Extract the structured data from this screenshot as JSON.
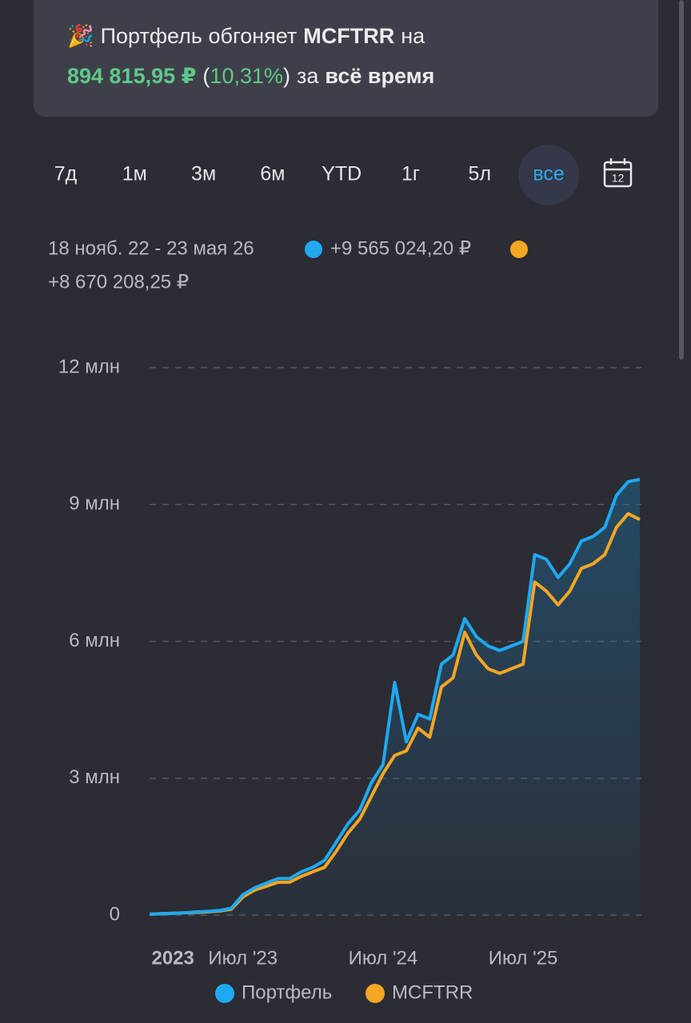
{
  "header": {
    "emoji": "🎉",
    "line1": [
      "Портфель обгоняет",
      "MCFTRR",
      "на"
    ],
    "line2": [
      "894 815,95 ₽",
      "(",
      "10,31%",
      ")",
      "за",
      "всё время"
    ]
  },
  "period_selector": {
    "options": [
      "7д",
      "1м",
      "3м",
      "6м",
      "YTD",
      "1г",
      "5л",
      "все"
    ],
    "active": 7,
    "calendar_label": "12"
  },
  "range_label": "18 нояб. 22 - 23 мая 26",
  "chart_data": {
    "type": "line",
    "x": [
      "2022-11",
      "2022-12",
      "2023-01",
      "2023-02",
      "2023-03",
      "2023-04",
      "2023-05",
      "2023-06",
      "2023-07",
      "2023-08",
      "2023-09",
      "2023-10",
      "2023-11",
      "2023-12",
      "2024-01",
      "2024-02",
      "2024-03",
      "2024-04",
      "2024-05",
      "2024-06",
      "2024-07",
      "2024-08",
      "2024-09",
      "2024-10",
      "2024-11",
      "2024-12",
      "2025-01",
      "2025-02",
      "2025-03",
      "2025-04",
      "2025-05",
      "2025-06",
      "2025-07",
      "2025-08",
      "2025-09",
      "2025-10",
      "2025-11",
      "2025-12",
      "2026-01",
      "2026-02",
      "2026-03",
      "2026-04",
      "2026-05"
    ],
    "series": [
      {
        "name": "Портфель",
        "color": "#1ea9f0",
        "change": "+9 565 024,20 ₽",
        "values": [
          0.02,
          0.03,
          0.04,
          0.05,
          0.07,
          0.08,
          0.1,
          0.15,
          0.45,
          0.6,
          0.7,
          0.8,
          0.8,
          0.95,
          1.05,
          1.2,
          1.6,
          2.0,
          2.3,
          2.9,
          3.3,
          5.1,
          3.8,
          4.4,
          4.3,
          5.5,
          5.7,
          6.5,
          6.1,
          5.9,
          5.8,
          5.9,
          6.0,
          7.9,
          7.8,
          7.4,
          7.7,
          8.2,
          8.3,
          8.5,
          9.2,
          9.5,
          9.55
        ]
      },
      {
        "name": "MCFTRR",
        "color": "#f5a623",
        "change": "+8 670 208,25 ₽",
        "values": [
          0.02,
          0.03,
          0.04,
          0.05,
          0.06,
          0.07,
          0.09,
          0.13,
          0.4,
          0.55,
          0.63,
          0.72,
          0.72,
          0.85,
          0.95,
          1.05,
          1.4,
          1.8,
          2.1,
          2.6,
          3.1,
          3.5,
          3.6,
          4.1,
          3.9,
          5.0,
          5.2,
          6.2,
          5.7,
          5.4,
          5.3,
          5.4,
          5.5,
          7.3,
          7.1,
          6.8,
          7.1,
          7.6,
          7.7,
          7.9,
          8.5,
          8.8,
          8.67
        ]
      }
    ],
    "ylim": [
      0,
      12
    ],
    "yticks": [
      0,
      {
        "value": 3,
        "label": "3 млн"
      },
      {
        "value": 6,
        "label": "6 млн"
      },
      {
        "value": 9,
        "label": "9 млн"
      },
      {
        "value": 12,
        "label": "12 млн"
      }
    ],
    "xticks": [
      {
        "value": "2023-01",
        "label": "2023"
      },
      {
        "value": "2023-07",
        "label": "Июл '23"
      },
      {
        "value": "2024-07",
        "label": "Июл '24"
      },
      {
        "value": "2025-07",
        "label": "Июл '25"
      }
    ],
    "grid": true,
    "area_fill": true
  }
}
